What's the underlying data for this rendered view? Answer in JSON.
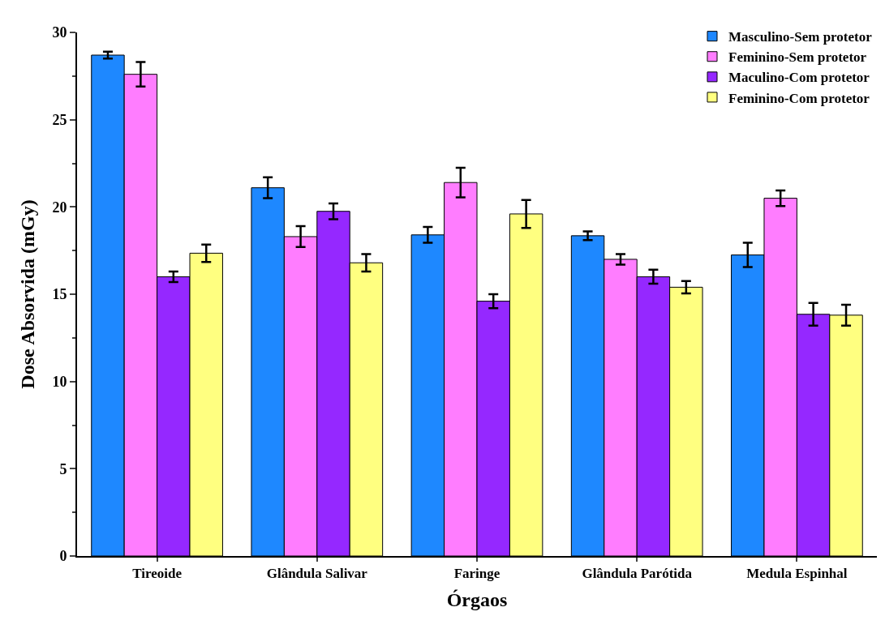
{
  "chart_data": {
    "type": "bar",
    "xlabel": "Órgaos",
    "ylabel": "Dose Absorvida (mGy)",
    "categories": [
      "Tireoide",
      "Glândula Salivar",
      "Faringe",
      "Glândula Parótida",
      "Medula Espinhal"
    ],
    "series": [
      {
        "name": "Masculino-Sem protetor",
        "color": "#1e88ff",
        "values": [
          28.7,
          21.1,
          18.4,
          18.35,
          17.25
        ],
        "errors": [
          0.2,
          0.6,
          0.45,
          0.25,
          0.7
        ]
      },
      {
        "name": "Feminino-Sem protetor",
        "color": "#ff7dff",
        "values": [
          27.6,
          18.3,
          21.4,
          17.0,
          20.5
        ],
        "errors": [
          0.7,
          0.6,
          0.85,
          0.3,
          0.45
        ]
      },
      {
        "name": "Maculino-Com protetor",
        "color": "#9528ff",
        "values": [
          16.0,
          19.75,
          14.6,
          16.0,
          13.85
        ],
        "errors": [
          0.3,
          0.45,
          0.4,
          0.4,
          0.65
        ]
      },
      {
        "name": "Feminino-Com protetor",
        "color": "#ffff80",
        "values": [
          17.35,
          16.8,
          19.6,
          15.4,
          13.8
        ],
        "errors": [
          0.5,
          0.5,
          0.8,
          0.35,
          0.6
        ]
      }
    ],
    "ylim": [
      0,
      30
    ],
    "yticks": [
      0,
      5,
      10,
      15,
      20,
      25,
      30
    ],
    "legend": "top right"
  }
}
